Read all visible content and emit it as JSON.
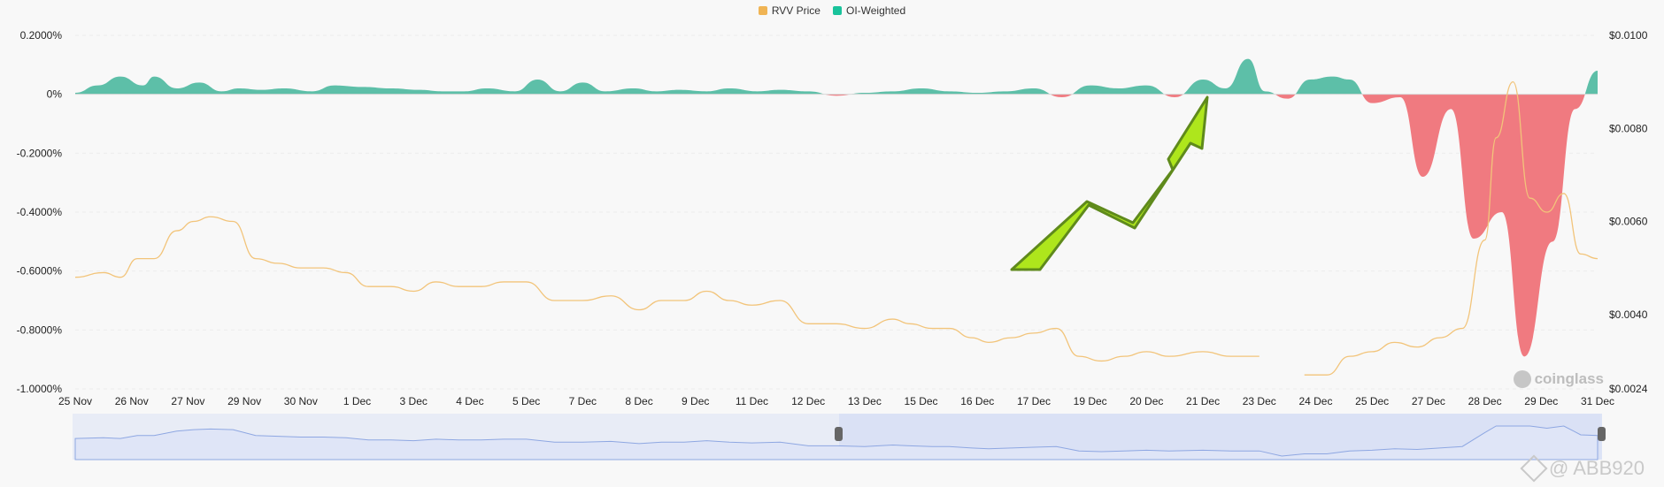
{
  "legend": [
    {
      "label": "RVV Price",
      "color": "#f0b454"
    },
    {
      "label": "OI-Weighted",
      "color": "#19c39b"
    }
  ],
  "brand_text": "coinglass",
  "watermark_text": "@ ABB920",
  "colors": {
    "positive_fill": "#5dbfa8",
    "negative_fill": "#f07a80",
    "price_line": "#f2c47a",
    "navigator_fill": "#dfe5f7",
    "navigator_line": "#8ea7e2",
    "arrow": "#aee61c"
  },
  "chart_data": {
    "type": "area",
    "title": "",
    "x_labels": [
      "25 Nov",
      "26 Nov",
      "27 Nov",
      "29 Nov",
      "30 Nov",
      "1 Dec",
      "3 Dec",
      "4 Dec",
      "5 Dec",
      "7 Dec",
      "8 Dec",
      "9 Dec",
      "11 Dec",
      "12 Dec",
      "13 Dec",
      "15 Dec",
      "16 Dec",
      "17 Dec",
      "19 Dec",
      "20 Dec",
      "21 Dec",
      "23 Dec",
      "24 Dec",
      "25 Dec",
      "27 Dec",
      "28 Dec",
      "29 Dec",
      "31 Dec"
    ],
    "left_axis": {
      "label": "",
      "ticks": [
        "0.2000%",
        "0%",
        "-0.2000%",
        "-0.4000%",
        "-0.6000%",
        "-0.8000%",
        "-1.0000%"
      ],
      "range": [
        -1.0,
        0.2
      ]
    },
    "right_axis": {
      "label": "",
      "ticks": [
        "$0.0100",
        "$0.0080",
        "$0.0060",
        "$0.0040",
        "$0.0024"
      ],
      "range": [
        0.0024,
        0.01
      ]
    },
    "series": [
      {
        "name": "OI-Weighted",
        "axis": "left",
        "x": [
          0,
          0.4,
          0.8,
          1.2,
          1.4,
          1.8,
          2.2,
          2.6,
          2.9,
          3.3,
          3.7,
          4.2,
          4.6,
          5.1,
          5.6,
          6.1,
          6.5,
          6.9,
          7.3,
          7.8,
          8.2,
          8.6,
          9.0,
          9.4,
          9.9,
          10.3,
          10.7,
          11.2,
          11.6,
          12.1,
          12.5,
          13.0,
          13.5,
          14.0,
          14.5,
          15.0,
          15.5,
          16.0,
          16.5,
          17.0,
          17.5,
          18.0,
          18.5,
          19.0,
          19.5,
          20.0,
          20.4,
          20.8,
          21.1,
          21.5,
          21.9,
          22.3,
          22.6,
          23.0,
          23.5,
          23.9,
          24.4,
          24.8,
          25.3,
          25.7,
          26.2,
          26.6,
          27.0
        ],
        "values": [
          0.005,
          0.03,
          0.06,
          0.03,
          0.06,
          0.02,
          0.04,
          0.01,
          0.02,
          0.015,
          0.02,
          0.01,
          0.03,
          0.025,
          0.02,
          0.015,
          0.01,
          0.01,
          0.02,
          0.01,
          0.05,
          0.01,
          0.04,
          0.01,
          0.02,
          0.01,
          0.015,
          0.01,
          0.02,
          0.01,
          0.015,
          0.01,
          -0.005,
          0.005,
          0.01,
          0.02,
          0.01,
          0.005,
          0.01,
          0.02,
          -0.01,
          0.03,
          0.02,
          0.03,
          -0.01,
          0.05,
          0.02,
          0.12,
          0.01,
          -0.015,
          0.05,
          0.06,
          0.05,
          -0.03,
          -0.01,
          -0.28,
          -0.05,
          -0.49,
          -0.4,
          -0.89,
          -0.5,
          -0.05,
          0.08
        ],
        "color": "#19c39b"
      },
      {
        "name": "RVV Price",
        "axis": "right",
        "x": [
          0,
          0.5,
          0.8,
          1.1,
          1.4,
          1.8,
          2.1,
          2.4,
          2.8,
          3.2,
          3.6,
          4.0,
          4.4,
          4.8,
          5.2,
          5.6,
          6.0,
          6.4,
          6.8,
          7.2,
          7.6,
          8.0,
          8.5,
          9.0,
          9.5,
          10.0,
          10.4,
          10.8,
          11.2,
          11.6,
          12.0,
          12.5,
          13.0,
          13.5,
          14.0,
          14.5,
          14.8,
          15.2,
          15.5,
          15.9,
          16.2,
          16.6,
          17.0,
          17.4,
          17.8,
          18.2,
          18.6,
          19.0,
          19.4,
          20.0,
          20.5,
          21.0,
          21.4,
          21.8,
          22.2,
          22.6,
          23.0,
          23.4,
          23.8,
          24.2,
          24.6,
          25.0,
          25.2,
          25.5,
          25.8,
          26.1,
          26.4,
          26.7,
          27.0
        ],
        "values": [
          0.0048,
          0.0049,
          0.0048,
          0.0052,
          0.0052,
          0.0058,
          0.006,
          0.0061,
          0.006,
          0.0052,
          0.0051,
          0.005,
          0.005,
          0.0049,
          0.0046,
          0.0046,
          0.0045,
          0.0047,
          0.0046,
          0.0046,
          0.0047,
          0.0047,
          0.0043,
          0.0043,
          0.0044,
          0.0041,
          0.0043,
          0.0043,
          0.0045,
          0.0043,
          0.0042,
          0.0043,
          0.0038,
          0.0038,
          0.0037,
          0.0039,
          0.0038,
          0.0037,
          0.0037,
          0.0035,
          0.0034,
          0.0035,
          0.0036,
          0.0037,
          0.0031,
          0.003,
          0.0031,
          0.0032,
          0.0031,
          0.0032,
          0.0031,
          0.0031,
          null,
          0.0027,
          0.0027,
          0.0031,
          0.0032,
          0.0034,
          0.0033,
          0.0035,
          0.0037,
          0.0056,
          0.0078,
          0.009,
          0.0065,
          0.0062,
          0.0066,
          0.0053,
          0.0052
        ],
        "color": "#f0b454"
      }
    ],
    "grid": true,
    "legend_position": "top-center"
  }
}
